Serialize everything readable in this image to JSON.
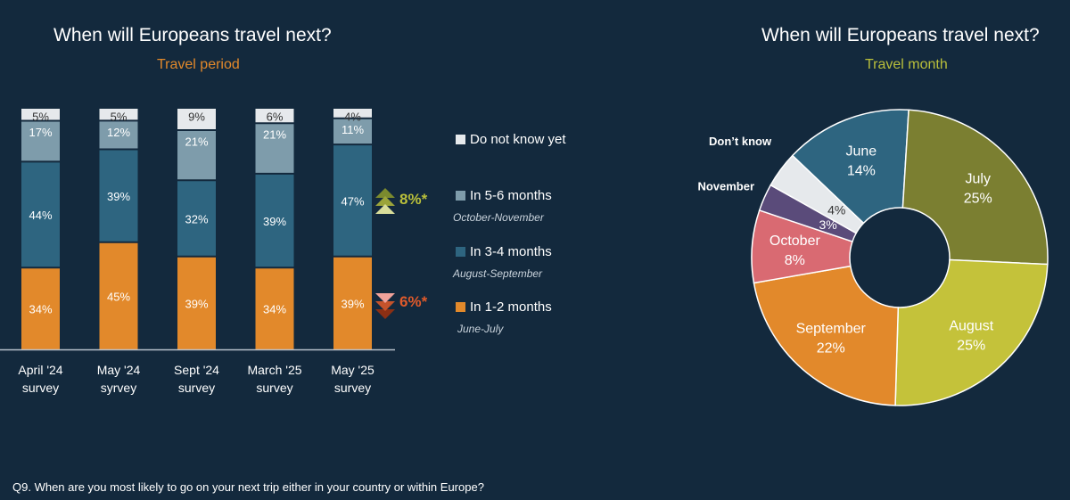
{
  "footnote": "Q9. When are you most likely to go on your next trip either in your country or within Europe?",
  "chart_data": [
    {
      "type": "bar",
      "stacked": true,
      "title": "When will Europeans travel next?",
      "subtitle": "Travel period",
      "categories": [
        "April '24 survey",
        "May '24 syrvey",
        "Sept '24 survey",
        "March '25 survey",
        "May '25 survey"
      ],
      "category_lines": [
        [
          "April '24",
          "survey"
        ],
        [
          "May '24",
          "syrvey"
        ],
        [
          "Sept '24",
          "survey"
        ],
        [
          "March '25",
          "survey"
        ],
        [
          "May '25",
          "survey"
        ]
      ],
      "series": [
        {
          "name": "In 1-2 months",
          "period": "June-July",
          "color": "#e2892b",
          "values": [
            34,
            45,
            39,
            34,
            39
          ]
        },
        {
          "name": "In 3-4 months",
          "period": "August-September",
          "color": "#2e6580",
          "values": [
            44,
            39,
            32,
            39,
            47
          ]
        },
        {
          "name": "In 5-6 months",
          "period": "October-November",
          "color": "#7e9cab",
          "values": [
            17,
            12,
            21,
            21,
            11
          ]
        },
        {
          "name": "Do not know yet",
          "period": "",
          "color": "#e6e9ec",
          "values": [
            5,
            5,
            9,
            6,
            4
          ]
        }
      ],
      "value_suffix": "%",
      "legend_position": "right",
      "annotations": [
        {
          "series": "In 3-4 months",
          "text": "8%*",
          "direction": "up",
          "color": "#b9bf3b"
        },
        {
          "series": "In 1-2 months",
          "text": "6%*",
          "direction": "down",
          "color": "#e05a2b"
        }
      ]
    },
    {
      "type": "pie",
      "donut": true,
      "title": "When will Europeans travel next?",
      "subtitle": "Travel month",
      "slices": [
        {
          "label": "June",
          "value": 14,
          "color": "#2e6580",
          "text_color": "#ffffff"
        },
        {
          "label": "July",
          "value": 25,
          "color": "#7b7f31",
          "text_color": "#ffffff"
        },
        {
          "label": "August",
          "value": 25,
          "color": "#c4c23a",
          "text_color": "#ffffff"
        },
        {
          "label": "September",
          "value": 22,
          "color": "#e2892b",
          "text_color": "#ffffff"
        },
        {
          "label": "October",
          "value": 8,
          "color": "#d96a72",
          "text_color": "#ffffff"
        },
        {
          "label": "November",
          "value": 3,
          "color": "#5a4b7a",
          "text_color": "#ffffff"
        },
        {
          "label": "Don't know",
          "value": 4,
          "color": "#e6e9ec",
          "text_color": "#333333"
        }
      ],
      "value_suffix": "%"
    }
  ]
}
